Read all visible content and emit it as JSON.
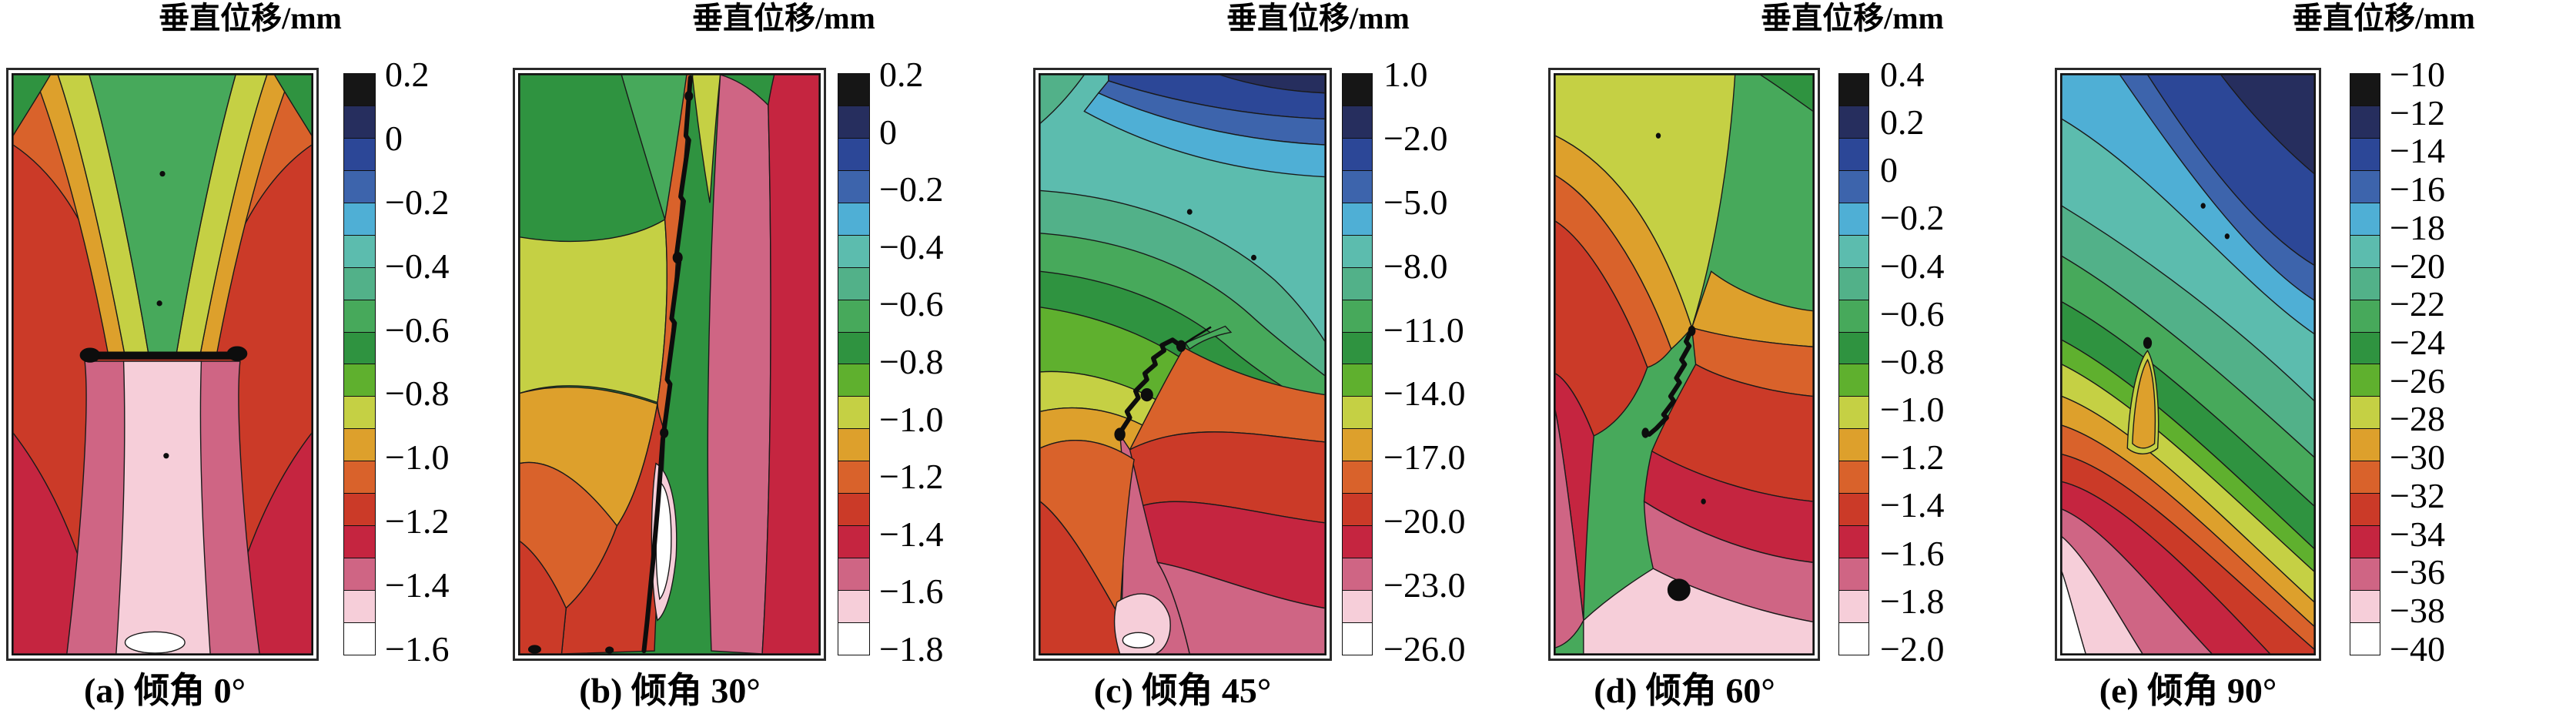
{
  "palette": [
    "#161616",
    "#262e5e",
    "#2c4797",
    "#3d64ac",
    "#4fafd5",
    "#5cbcae",
    "#52b189",
    "#47a95b",
    "#2f9340",
    "#5fb02e",
    "#c5d044",
    "#dda02c",
    "#d9622b",
    "#cb3a28",
    "#c52540",
    "#cf6584",
    "#f6ced9",
    "#ffffff"
  ],
  "panels": [
    {
      "id": "a",
      "title": "垂直位移/mm",
      "caption": "(a) 倾角 0°",
      "colorbar_labels": [
        "0.2",
        "0",
        "−0.2",
        "−0.4",
        "−0.6",
        "−0.8",
        "−1.0",
        "−1.2",
        "−1.4",
        "−1.6"
      ]
    },
    {
      "id": "b",
      "title": "垂直位移/mm",
      "caption": "(b) 倾角 30°",
      "colorbar_labels": [
        "0.2",
        "0",
        "−0.2",
        "−0.4",
        "−0.6",
        "−0.8",
        "−1.0",
        "−1.2",
        "−1.4",
        "−1.6",
        "−1.8"
      ]
    },
    {
      "id": "c",
      "title": "垂直位移/mm",
      "caption": "(c) 倾角 45°",
      "colorbar_labels": [
        "1.0",
        "−2.0",
        "−5.0",
        "−8.0",
        "−11.0",
        "−14.0",
        "−17.0",
        "−20.0",
        "−23.0",
        "−26.0"
      ]
    },
    {
      "id": "d",
      "title": "垂直位移/mm",
      "caption": "(d) 倾角 60°",
      "colorbar_labels": [
        "0.4",
        "0.2",
        "0",
        "−0.2",
        "−0.4",
        "−0.6",
        "−0.8",
        "−1.0",
        "−1.2",
        "−1.4",
        "−1.6",
        "−1.8",
        "−2.0"
      ]
    },
    {
      "id": "e",
      "title": "垂直位移/mm",
      "caption": "(e) 倾角 90°",
      "colorbar_labels": [
        "−10",
        "−12",
        "−14",
        "−16",
        "−18",
        "−20",
        "−22",
        "−24",
        "−26",
        "−28",
        "−30",
        "−32",
        "−34",
        "−36",
        "−38",
        "−40"
      ]
    }
  ],
  "chart_data": {
    "type": "heatmap",
    "subtype": "filled-contour-map",
    "quantity": "垂直位移",
    "unit": "mm",
    "legend_title": "垂直位移/mm",
    "colorbar_segments_top_to_bottom": 18,
    "colorbar_colors_top_to_bottom": [
      "#161616",
      "#262e5e",
      "#2c4797",
      "#3d64ac",
      "#4fafd5",
      "#5cbcae",
      "#52b189",
      "#47a95b",
      "#2f9340",
      "#5fb02e",
      "#c5d044",
      "#dda02c",
      "#d9622b",
      "#cb3a28",
      "#c52540",
      "#cf6584",
      "#f6ced9",
      "#ffffff"
    ],
    "panels": [
      {
        "caption": "(a) 倾角 0°",
        "dip_angle_deg": 0,
        "legend_ticks": [
          0.2,
          0,
          -0.2,
          -0.4,
          -0.6,
          -0.8,
          -1.0,
          -1.2,
          -1.4,
          -1.6
        ],
        "description": "symmetric trough: green uplift zone above horizontal excavation line, red flanks, pink/white subsidence funnel below center"
      },
      {
        "caption": "(b) 倾角 30°",
        "dip_angle_deg": 30,
        "legend_ticks": [
          0.2,
          0,
          -0.2,
          -0.4,
          -0.6,
          -0.8,
          -1.0,
          -1.2,
          -1.4,
          -1.6,
          -1.8
        ],
        "description": "inclined fault from top-right to bottom-center; green upper-left, warm bands lower-left, rose/crimson band right of fault, white patch near fault bottom"
      },
      {
        "caption": "(c) 倾角 45°",
        "dip_angle_deg": 45,
        "legend_ticks": [
          1.0,
          -2.0,
          -5.0,
          -8.0,
          -11.0,
          -14.0,
          -17.0,
          -20.0,
          -23.0,
          -26.0
        ],
        "description": "45° fault in center; blue/teal cap at top, green fan above fault, orange-red fan and rose/pink subsidence column below fault"
      },
      {
        "caption": "(d) 倾角 60°",
        "dip_angle_deg": 60,
        "legend_ticks": [
          0.4,
          0.2,
          0,
          -0.2,
          -0.4,
          -0.6,
          -0.8,
          -1.0,
          -1.2,
          -1.4,
          -1.6,
          -1.8,
          -2.0
        ],
        "description": "steep fault; green top-right, yellow chevron, large red mid zone, rose/light-pink bottom with small black spot"
      },
      {
        "caption": "(e) 倾角 90°",
        "dip_angle_deg": 90,
        "legend_ticks": [
          -10,
          -12,
          -14,
          -16,
          -18,
          -20,
          -22,
          -24,
          -26,
          -28,
          -30,
          -32,
          -34,
          -36,
          -38,
          -40
        ],
        "description": "sub-parallel inclined bands, dark blue top-right corner to white bottom-left corner, small orange plume disturbance at mid-left"
      }
    ]
  }
}
